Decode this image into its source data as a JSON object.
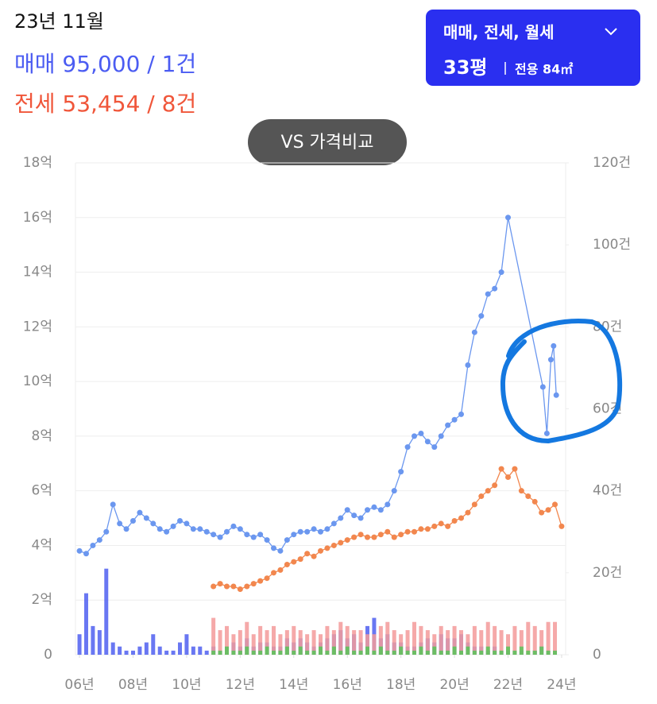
{
  "header": {
    "date": "23년 11월",
    "sale": "매매 95,000 / 1건",
    "jeonse": "전세 53,454 / 8건"
  },
  "filter": {
    "types": "매매, 전세, 월세",
    "size": "33평",
    "area": "전용 84㎡"
  },
  "compare_button": "VS 가격비교",
  "chart_data": {
    "type": "combo",
    "xlim": [
      5.85,
      24.15
    ],
    "xticks": [
      {
        "value": 6,
        "label": "06년"
      },
      {
        "value": 8,
        "label": "08년"
      },
      {
        "value": 10,
        "label": "10년"
      },
      {
        "value": 12,
        "label": "12년"
      },
      {
        "value": 14,
        "label": "14년"
      },
      {
        "value": 16,
        "label": "16년"
      },
      {
        "value": 18,
        "label": "18년"
      },
      {
        "value": 20,
        "label": "20년"
      },
      {
        "value": 22,
        "label": "22년"
      },
      {
        "value": 24,
        "label": "24년"
      }
    ],
    "ylim": [
      0,
      18
    ],
    "yticks": [
      0,
      {
        "value": 2,
        "label": "2억"
      },
      {
        "value": 4,
        "label": "4억"
      },
      {
        "value": 6,
        "label": "6억"
      },
      {
        "value": 8,
        "label": "8억"
      },
      {
        "value": 10,
        "label": "10억"
      },
      {
        "value": 12,
        "label": "12억"
      },
      {
        "value": 14,
        "label": "14억"
      },
      {
        "value": 16,
        "label": "16억"
      },
      {
        "value": 18,
        "label": "18억"
      }
    ],
    "y2lim": [
      0,
      120
    ],
    "y2ticks": [
      0,
      {
        "value": 20,
        "label": "20건"
      },
      {
        "value": 40,
        "label": "40건"
      },
      {
        "value": 60,
        "label": "60건"
      },
      {
        "value": 80,
        "label": "80건"
      },
      {
        "value": 100,
        "label": "100건"
      },
      {
        "value": 120,
        "label": "120건"
      }
    ],
    "grid": true,
    "series": [
      {
        "type": "bar",
        "axis": "y2",
        "color": "#4f5ff0",
        "x": [
          6,
          6.25,
          6.5,
          6.75,
          7,
          7.25,
          7.5,
          7.75,
          8,
          8.25,
          8.5,
          8.75,
          9,
          9.25,
          9.5,
          9.75,
          10,
          10.25,
          10.5,
          10.75,
          11,
          11.25,
          11.5,
          11.75,
          12,
          12.25,
          12.5,
          12.75,
          13,
          13.25,
          13.5,
          13.75,
          14,
          14.25,
          14.5,
          14.75,
          15,
          15.25,
          15.5,
          15.75,
          16,
          16.25,
          16.5,
          16.75,
          17,
          17.25,
          17.5,
          17.75,
          18,
          18.25,
          18.5,
          18.75,
          19,
          19.25,
          19.5,
          19.75,
          20,
          20.25,
          20.5,
          20.75,
          21,
          21.25,
          21.5,
          21.75,
          22,
          22.25,
          22.5,
          22.75,
          23,
          23.25,
          23.5,
          23.75
        ],
        "values": [
          5,
          15,
          7,
          6,
          21,
          3,
          2,
          1,
          1,
          2,
          3,
          5,
          2,
          1,
          1,
          3,
          5,
          2,
          2,
          1,
          2,
          1,
          2,
          3,
          2,
          4,
          2,
          3,
          3,
          2,
          2,
          4,
          3,
          4,
          3,
          2,
          3,
          4,
          5,
          6,
          4,
          5,
          3,
          7,
          9,
          4,
          5,
          3,
          3,
          2,
          2,
          3,
          4,
          3,
          5,
          4,
          4,
          5,
          3,
          2,
          2,
          1,
          2,
          1,
          1,
          1,
          1,
          0,
          1,
          2,
          1,
          1
        ]
      },
      {
        "type": "bar",
        "axis": "y2",
        "color": "#f39a9a",
        "x": [
          11,
          11.25,
          11.5,
          11.75,
          12,
          12.25,
          12.5,
          12.75,
          13,
          13.25,
          13.5,
          13.75,
          14,
          14.25,
          14.5,
          14.75,
          15,
          15.25,
          15.5,
          15.75,
          16,
          16.25,
          16.5,
          16.75,
          17,
          17.25,
          17.5,
          17.75,
          18,
          18.25,
          18.5,
          18.75,
          19,
          19.25,
          19.5,
          19.75,
          20,
          20.25,
          20.5,
          20.75,
          21,
          21.25,
          21.5,
          21.75,
          22,
          22.25,
          22.5,
          22.75,
          23,
          23.25,
          23.5,
          23.75
        ],
        "values": [
          9,
          6,
          7,
          5,
          6,
          8,
          5,
          7,
          6,
          7,
          5,
          6,
          7,
          6,
          5,
          6,
          5,
          7,
          6,
          8,
          7,
          6,
          6,
          5,
          5,
          7,
          8,
          6,
          5,
          6,
          8,
          7,
          6,
          5,
          7,
          6,
          7,
          6,
          5,
          7,
          6,
          8,
          7,
          6,
          5,
          7,
          6,
          8,
          7,
          6,
          8,
          8
        ]
      },
      {
        "type": "bar",
        "axis": "y2",
        "color": "#58c458",
        "x": [
          11,
          11.25,
          11.5,
          11.75,
          12,
          12.25,
          12.5,
          12.75,
          13,
          13.25,
          13.5,
          13.75,
          14,
          14.25,
          14.5,
          14.75,
          15,
          15.25,
          15.5,
          15.75,
          16,
          16.25,
          16.5,
          16.75,
          17,
          17.25,
          17.5,
          17.75,
          18,
          18.25,
          18.5,
          18.75,
          19,
          19.25,
          19.5,
          19.75,
          20,
          20.25,
          20.5,
          20.75,
          21,
          21.25,
          21.5,
          21.75,
          22,
          22.25,
          22.5,
          22.75,
          23,
          23.25,
          23.5,
          23.75
        ],
        "values": [
          1,
          1,
          2,
          1,
          1,
          2,
          1,
          1,
          2,
          1,
          1,
          2,
          1,
          2,
          1,
          1,
          2,
          1,
          2,
          1,
          2,
          1,
          1,
          2,
          1,
          2,
          1,
          1,
          2,
          1,
          1,
          2,
          1,
          2,
          1,
          1,
          2,
          1,
          2,
          1,
          1,
          2,
          1,
          1,
          2,
          1,
          2,
          1,
          1,
          2,
          1,
          1
        ]
      },
      {
        "type": "line",
        "color": "#6b97ef",
        "x": [
          6,
          6.25,
          6.5,
          6.75,
          7,
          7.25,
          7.5,
          7.75,
          8,
          8.25,
          8.5,
          8.75,
          9,
          9.25,
          9.5,
          9.75,
          10,
          10.25,
          10.5,
          10.75,
          11,
          11.25,
          11.5,
          11.75,
          12,
          12.25,
          12.5,
          12.75,
          13,
          13.25,
          13.5,
          13.75,
          14,
          14.25,
          14.5,
          14.75,
          15,
          15.25,
          15.5,
          15.75,
          16,
          16.25,
          16.5,
          16.75,
          17,
          17.25,
          17.5,
          17.75,
          18,
          18.25,
          18.5,
          18.75,
          19,
          19.25,
          19.5,
          19.75,
          20,
          20.25,
          20.5,
          20.75,
          21,
          21.25,
          21.5,
          21.75,
          22,
          23.3,
          23.45,
          23.6,
          23.7,
          23.8
        ],
        "values": [
          3.8,
          3.7,
          4.0,
          4.2,
          4.5,
          5.5,
          4.8,
          4.6,
          4.9,
          5.2,
          5.0,
          4.8,
          4.6,
          4.5,
          4.7,
          4.9,
          4.8,
          4.6,
          4.6,
          4.5,
          4.4,
          4.3,
          4.5,
          4.7,
          4.6,
          4.4,
          4.3,
          4.4,
          4.2,
          3.9,
          3.8,
          4.2,
          4.4,
          4.5,
          4.5,
          4.6,
          4.5,
          4.6,
          4.8,
          5.0,
          5.3,
          5.1,
          5.0,
          5.3,
          5.4,
          5.3,
          5.5,
          6.0,
          6.7,
          7.6,
          8.0,
          8.1,
          7.8,
          7.6,
          8.0,
          8.4,
          8.6,
          8.8,
          10.6,
          11.8,
          12.4,
          13.2,
          13.4,
          14.0,
          16.0,
          9.8,
          8.1,
          10.8,
          11.3,
          9.5
        ]
      },
      {
        "type": "line",
        "color": "#f2874e",
        "x": [
          11,
          11.25,
          11.5,
          11.75,
          12,
          12.25,
          12.5,
          12.75,
          13,
          13.25,
          13.5,
          13.75,
          14,
          14.25,
          14.5,
          14.75,
          15,
          15.25,
          15.5,
          15.75,
          16,
          16.25,
          16.5,
          16.75,
          17,
          17.25,
          17.5,
          17.75,
          18,
          18.25,
          18.5,
          18.75,
          19,
          19.25,
          19.5,
          19.75,
          20,
          20.25,
          20.5,
          20.75,
          21,
          21.25,
          21.5,
          21.75,
          22,
          22.25,
          22.5,
          22.75,
          23,
          23.25,
          23.5,
          23.75,
          24
        ],
        "values": [
          2.5,
          2.6,
          2.5,
          2.5,
          2.4,
          2.5,
          2.6,
          2.7,
          2.8,
          3.0,
          3.1,
          3.3,
          3.4,
          3.5,
          3.7,
          3.6,
          3.8,
          3.9,
          4.0,
          4.1,
          4.2,
          4.3,
          4.4,
          4.3,
          4.3,
          4.4,
          4.5,
          4.3,
          4.4,
          4.5,
          4.5,
          4.6,
          4.6,
          4.7,
          4.8,
          4.7,
          4.9,
          5.0,
          5.2,
          5.5,
          5.8,
          6.0,
          6.2,
          6.8,
          6.5,
          6.8,
          6.0,
          5.8,
          5.6,
          5.2,
          5.3,
          5.5,
          4.7
        ]
      }
    ]
  }
}
